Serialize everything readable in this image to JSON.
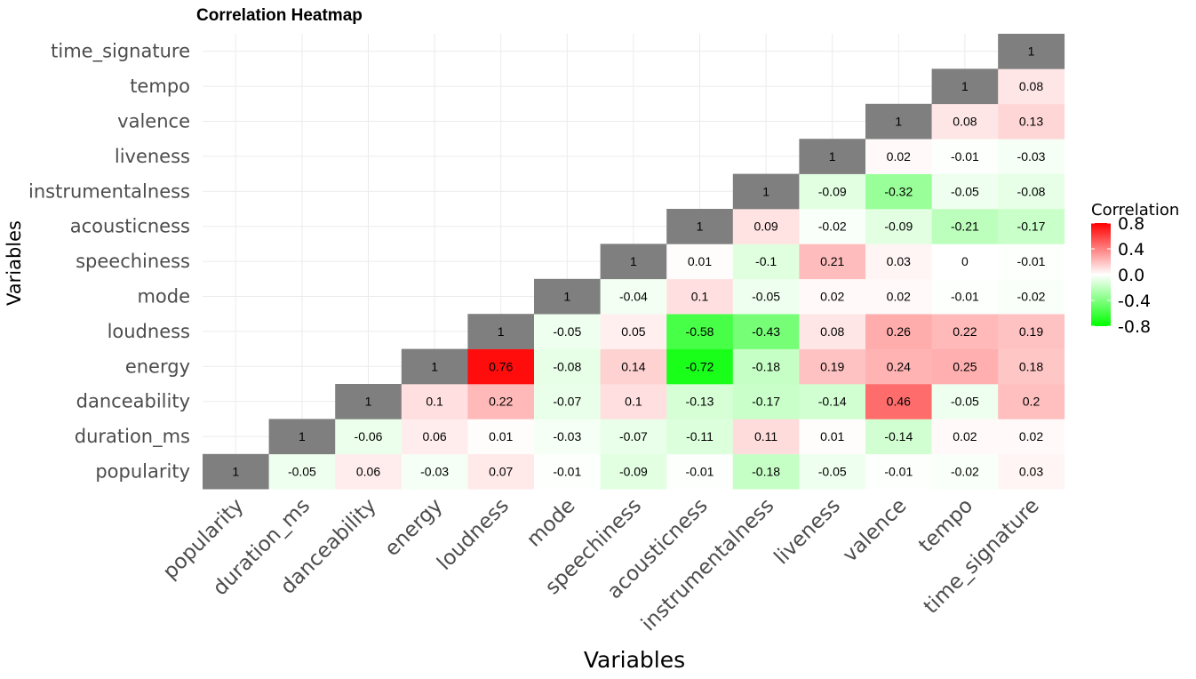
{
  "chart_data": {
    "type": "heatmap",
    "title": "Correlation Heatmap",
    "xlabel": "Variables",
    "ylabel": "Variables",
    "variables": [
      "popularity",
      "duration_ms",
      "danceability",
      "energy",
      "loudness",
      "mode",
      "speechiness",
      "acousticness",
      "instrumentalness",
      "liveness",
      "valence",
      "tempo",
      "time_signature"
    ],
    "matrix": [
      [
        1,
        -0.05,
        0.06,
        -0.03,
        0.07,
        -0.01,
        -0.09,
        -0.01,
        -0.18,
        -0.05,
        -0.01,
        -0.02,
        0.03
      ],
      [
        null,
        1,
        -0.06,
        0.06,
        0.01,
        -0.03,
        -0.07,
        -0.11,
        0.11,
        0.01,
        -0.14,
        0.02,
        0.02
      ],
      [
        null,
        null,
        1,
        0.1,
        0.22,
        -0.07,
        0.1,
        -0.13,
        -0.17,
        -0.14,
        0.46,
        -0.05,
        0.2
      ],
      [
        null,
        null,
        null,
        1,
        0.76,
        -0.08,
        0.14,
        -0.72,
        -0.18,
        0.19,
        0.24,
        0.25,
        0.18
      ],
      [
        null,
        null,
        null,
        null,
        1,
        -0.05,
        0.05,
        -0.58,
        -0.43,
        0.08,
        0.26,
        0.22,
        0.19
      ],
      [
        null,
        null,
        null,
        null,
        null,
        1,
        -0.04,
        0.1,
        -0.05,
        0.02,
        0.02,
        -0.01,
        -0.02
      ],
      [
        null,
        null,
        null,
        null,
        null,
        null,
        1,
        0.01,
        -0.1,
        0.21,
        0.03,
        0,
        -0.01
      ],
      [
        null,
        null,
        null,
        null,
        null,
        null,
        null,
        1,
        0.09,
        -0.02,
        -0.09,
        -0.21,
        -0.17
      ],
      [
        null,
        null,
        null,
        null,
        null,
        null,
        null,
        null,
        1,
        -0.09,
        -0.32,
        -0.05,
        -0.08
      ],
      [
        null,
        null,
        null,
        null,
        null,
        null,
        null,
        null,
        null,
        1,
        0.02,
        -0.01,
        -0.03
      ],
      [
        null,
        null,
        null,
        null,
        null,
        null,
        null,
        null,
        null,
        null,
        1,
        0.08,
        0.13
      ],
      [
        null,
        null,
        null,
        null,
        null,
        null,
        null,
        null,
        null,
        null,
        null,
        1,
        0.08
      ],
      [
        null,
        null,
        null,
        null,
        null,
        null,
        null,
        null,
        null,
        null,
        null,
        null,
        1
      ]
    ],
    "diagonal_color": "#7f7f7f",
    "color_scale": {
      "low": "#00ff00",
      "mid": "#ffffff",
      "high": "#ff0000",
      "limits": [
        -0.8,
        0.8
      ]
    },
    "legend": {
      "title": "Correlation",
      "ticks": [
        0.8,
        0.4,
        0.0,
        -0.4,
        -0.8
      ],
      "tick_labels": [
        "0.8",
        "0.4",
        "0.0",
        "-0.4",
        "-0.8"
      ],
      "position": "right"
    },
    "grid": true
  }
}
